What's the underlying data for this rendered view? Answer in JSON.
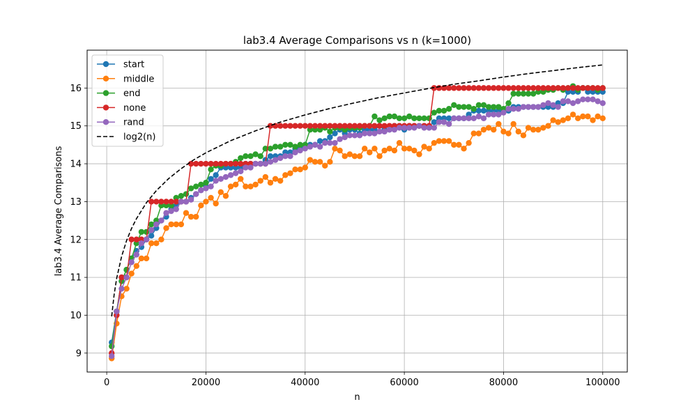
{
  "chart_data": {
    "type": "line",
    "title": "lab3.4 Average Comparisons vs n (k=1000)",
    "xlabel": "n",
    "ylabel": "lab3.4 Average Comparisons",
    "xlim": [
      -3950,
      104950
    ],
    "ylim": [
      8.5,
      17.0
    ],
    "xticks": [
      0,
      20000,
      40000,
      60000,
      80000,
      100000
    ],
    "yticks": [
      9,
      10,
      11,
      12,
      13,
      14,
      15,
      16
    ],
    "grid": true,
    "legend_position": "top-left",
    "x": [
      1000,
      2000,
      3000,
      4000,
      5000,
      6000,
      7000,
      8000,
      9000,
      10000,
      11000,
      12000,
      13000,
      14000,
      15000,
      16000,
      17000,
      18000,
      19000,
      20000,
      21000,
      22000,
      23000,
      24000,
      25000,
      26000,
      27000,
      28000,
      29000,
      30000,
      31000,
      32000,
      33000,
      34000,
      35000,
      36000,
      37000,
      38000,
      39000,
      40000,
      41000,
      42000,
      43000,
      44000,
      45000,
      46000,
      47000,
      48000,
      49000,
      50000,
      51000,
      52000,
      53000,
      54000,
      55000,
      56000,
      57000,
      58000,
      59000,
      60000,
      61000,
      62000,
      63000,
      64000,
      65000,
      66000,
      67000,
      68000,
      69000,
      70000,
      71000,
      72000,
      73000,
      74000,
      75000,
      76000,
      77000,
      78000,
      79000,
      80000,
      81000,
      82000,
      83000,
      84000,
      85000,
      86000,
      87000,
      88000,
      89000,
      90000,
      91000,
      92000,
      93000,
      94000,
      95000,
      96000,
      97000,
      98000,
      99000,
      100000
    ],
    "series": [
      {
        "name": "start",
        "color": "#1f77b4",
        "marker": "circle",
        "values": [
          9.28,
          10.1,
          10.9,
          11.2,
          11.5,
          11.7,
          11.8,
          12.0,
          12.1,
          12.3,
          12.5,
          12.6,
          12.8,
          12.9,
          13.0,
          13.0,
          13.1,
          13.2,
          13.3,
          13.4,
          13.6,
          13.7,
          13.9,
          13.9,
          13.9,
          13.9,
          13.9,
          14.0,
          14.0,
          14.0,
          14.0,
          14.1,
          14.2,
          14.2,
          14.2,
          14.3,
          14.3,
          14.4,
          14.4,
          14.5,
          14.5,
          14.5,
          14.6,
          14.6,
          14.7,
          14.8,
          14.9,
          14.8,
          14.9,
          14.9,
          14.8,
          14.9,
          14.9,
          14.9,
          15.0,
          14.9,
          14.9,
          15.0,
          15.0,
          14.9,
          15.0,
          15.0,
          15.0,
          15.0,
          15.0,
          15.1,
          15.2,
          15.2,
          15.2,
          15.2,
          15.2,
          15.2,
          15.3,
          15.4,
          15.4,
          15.4,
          15.4,
          15.4,
          15.4,
          15.4,
          15.4,
          15.5,
          15.5,
          15.5,
          15.5,
          15.5,
          15.5,
          15.5,
          15.5,
          15.5,
          15.6,
          15.6,
          15.9,
          15.9,
          15.9,
          16.0,
          15.9,
          15.9,
          15.9,
          15.9
        ]
      },
      {
        "name": "middle",
        "color": "#ff7f0e",
        "marker": "circle",
        "values": [
          8.86,
          9.78,
          10.5,
          10.7,
          11.1,
          11.3,
          11.5,
          11.5,
          11.9,
          11.9,
          12.0,
          12.3,
          12.4,
          12.4,
          12.4,
          12.7,
          12.6,
          12.6,
          12.9,
          13.0,
          13.1,
          12.95,
          13.25,
          13.15,
          13.4,
          13.45,
          13.6,
          13.4,
          13.4,
          13.45,
          13.55,
          13.65,
          13.5,
          13.6,
          13.55,
          13.7,
          13.75,
          13.85,
          13.85,
          13.9,
          14.1,
          14.05,
          14.05,
          13.95,
          14.05,
          14.4,
          14.35,
          14.2,
          14.25,
          14.2,
          14.2,
          14.4,
          14.3,
          14.4,
          14.2,
          14.35,
          14.4,
          14.35,
          14.55,
          14.4,
          14.4,
          14.35,
          14.25,
          14.45,
          14.4,
          14.55,
          14.6,
          14.6,
          14.6,
          14.5,
          14.5,
          14.4,
          14.55,
          14.8,
          14.8,
          14.9,
          14.95,
          14.9,
          15.05,
          14.85,
          14.8,
          15.05,
          14.85,
          14.75,
          14.95,
          14.9,
          14.9,
          14.95,
          15.0,
          15.15,
          15.1,
          15.15,
          15.2,
          15.3,
          15.2,
          15.25,
          15.25,
          15.15,
          15.25,
          15.2
        ]
      },
      {
        "name": "end",
        "color": "#2ca02c",
        "marker": "circle",
        "values": [
          9.18,
          10.1,
          10.9,
          11.2,
          11.5,
          11.9,
          12.2,
          12.2,
          12.4,
          12.5,
          12.9,
          12.9,
          12.9,
          13.1,
          13.15,
          13.2,
          13.35,
          13.4,
          13.45,
          13.5,
          13.85,
          13.95,
          13.95,
          14.0,
          14.0,
          14.05,
          14.15,
          14.2,
          14.2,
          14.25,
          14.2,
          14.4,
          14.4,
          14.45,
          14.45,
          14.5,
          14.5,
          14.45,
          14.5,
          14.5,
          14.9,
          14.9,
          14.9,
          14.95,
          14.85,
          14.95,
          14.95,
          14.9,
          14.95,
          14.95,
          14.95,
          15.0,
          15.0,
          15.25,
          15.15,
          15.2,
          15.25,
          15.25,
          15.2,
          15.2,
          15.25,
          15.2,
          15.2,
          15.2,
          15.2,
          15.35,
          15.4,
          15.4,
          15.45,
          15.55,
          15.5,
          15.5,
          15.5,
          15.45,
          15.55,
          15.55,
          15.5,
          15.5,
          15.5,
          15.45,
          15.6,
          15.85,
          15.85,
          15.85,
          15.85,
          15.85,
          15.9,
          15.9,
          15.95,
          15.95,
          16.0,
          15.95,
          16.0,
          16.05,
          15.95,
          16.0,
          16.0,
          16.0,
          15.95,
          16.0
        ]
      },
      {
        "name": "none",
        "color": "#d62728",
        "marker": "circle",
        "values": [
          9.0,
          10.0,
          11.0,
          11.0,
          12.0,
          12.0,
          12.0,
          12.0,
          13.0,
          13.0,
          13.0,
          13.0,
          13.0,
          13.0,
          13.0,
          13.0,
          14.0,
          14.0,
          14.0,
          14.0,
          14.0,
          14.0,
          14.0,
          14.0,
          14.0,
          14.0,
          14.0,
          14.0,
          14.0,
          14.0,
          14.0,
          14.0,
          15.0,
          15.0,
          15.0,
          15.0,
          15.0,
          15.0,
          15.0,
          15.0,
          15.0,
          15.0,
          15.0,
          15.0,
          15.0,
          15.0,
          15.0,
          15.0,
          15.0,
          15.0,
          15.0,
          15.0,
          15.0,
          15.0,
          15.0,
          15.0,
          15.0,
          15.0,
          15.0,
          15.0,
          15.0,
          15.0,
          15.0,
          15.0,
          15.0,
          16.0,
          16.0,
          16.0,
          16.0,
          16.0,
          16.0,
          16.0,
          16.0,
          16.0,
          16.0,
          16.0,
          16.0,
          16.0,
          16.0,
          16.0,
          16.0,
          16.0,
          16.0,
          16.0,
          16.0,
          16.0,
          16.0,
          16.0,
          16.0,
          16.0,
          16.0,
          16.0,
          16.0,
          16.0,
          16.0,
          16.0,
          16.0,
          16.0,
          16.0,
          16.0
        ]
      },
      {
        "name": "rand",
        "color": "#9467bd",
        "marker": "circle",
        "values": [
          8.92,
          10.1,
          10.7,
          11.0,
          11.4,
          11.6,
          11.9,
          12.0,
          12.25,
          12.4,
          12.5,
          12.7,
          12.75,
          12.8,
          13.0,
          13.0,
          13.05,
          13.2,
          13.3,
          13.35,
          13.4,
          13.55,
          13.6,
          13.65,
          13.7,
          13.75,
          13.8,
          13.9,
          13.9,
          14.0,
          14.0,
          14.0,
          14.05,
          14.1,
          14.15,
          14.2,
          14.2,
          14.3,
          14.35,
          14.4,
          14.45,
          14.5,
          14.45,
          14.55,
          14.55,
          14.55,
          14.65,
          14.7,
          14.75,
          14.75,
          14.75,
          14.8,
          14.8,
          14.8,
          14.85,
          14.85,
          14.9,
          14.9,
          14.95,
          14.95,
          14.95,
          14.95,
          15.0,
          14.95,
          14.95,
          14.95,
          15.1,
          15.1,
          15.05,
          15.2,
          15.2,
          15.2,
          15.2,
          15.2,
          15.25,
          15.2,
          15.3,
          15.3,
          15.3,
          15.35,
          15.45,
          15.45,
          15.45,
          15.5,
          15.5,
          15.5,
          15.5,
          15.55,
          15.6,
          15.55,
          15.5,
          15.65,
          15.65,
          15.6,
          15.65,
          15.7,
          15.7,
          15.7,
          15.65,
          15.6
        ]
      },
      {
        "name": "log2(n)",
        "color": "#000000",
        "line_style": "dashed",
        "marker": "none",
        "x": [
          1000,
          1500,
          2000,
          3000,
          4000,
          5000,
          6000,
          8000,
          10000,
          12500,
          15000,
          17500,
          20000,
          25000,
          30000,
          35000,
          40000,
          45000,
          50000,
          55000,
          60000,
          65000,
          70000,
          75000,
          80000,
          85000,
          90000,
          95000,
          100000
        ],
        "values": [
          9.97,
          10.55,
          10.97,
          11.55,
          11.97,
          12.29,
          12.55,
          12.97,
          13.29,
          13.61,
          13.87,
          14.1,
          14.29,
          14.61,
          14.87,
          15.1,
          15.29,
          15.46,
          15.61,
          15.75,
          15.87,
          15.99,
          16.1,
          16.19,
          16.29,
          16.38,
          16.46,
          16.54,
          16.61
        ]
      }
    ]
  }
}
